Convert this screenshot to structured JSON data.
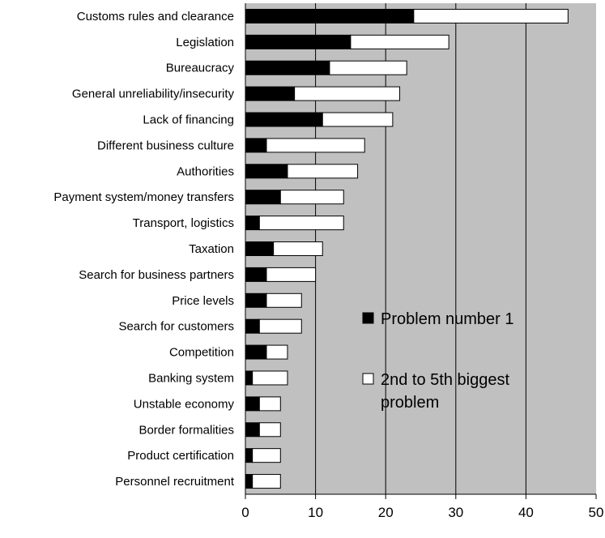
{
  "chart_data": {
    "type": "bar",
    "orientation": "horizontal",
    "stacked": true,
    "categories": [
      "Customs rules and clearance",
      "Legislation",
      "Bureaucracy",
      "General unreliability/insecurity",
      "Lack of financing",
      "Different business culture",
      "Authorities",
      "Payment system/money transfers",
      "Transport, logistics",
      "Taxation",
      "Search for business partners",
      "Price levels",
      "Search for customers",
      "Competition",
      "Banking system",
      "Unstable economy",
      "Border formalities",
      "Product certification",
      "Personnel recruitment"
    ],
    "series": [
      {
        "name": "Problem number 1",
        "color": "#000000",
        "values": [
          24,
          15,
          12,
          7,
          11,
          3,
          6,
          5,
          2,
          4,
          3,
          3,
          2,
          3,
          1,
          2,
          2,
          1,
          1
        ]
      },
      {
        "name": "2nd to 5th biggest problem",
        "color": "#ffffff",
        "values": [
          22,
          14,
          11,
          15,
          10,
          14,
          10,
          9,
          12,
          7,
          7,
          5,
          6,
          3,
          5,
          3,
          3,
          4,
          4
        ]
      }
    ],
    "xlim": [
      0,
      50
    ],
    "xticks": [
      "0",
      "10",
      "20",
      "30",
      "40",
      "50"
    ],
    "plot_background": "#c0c0c0",
    "grid": true,
    "legend_position": "right-middle"
  },
  "legend": {
    "line1": "Problem number 1",
    "line2a": "2nd to 5th biggest",
    "line2b": "problem"
  }
}
